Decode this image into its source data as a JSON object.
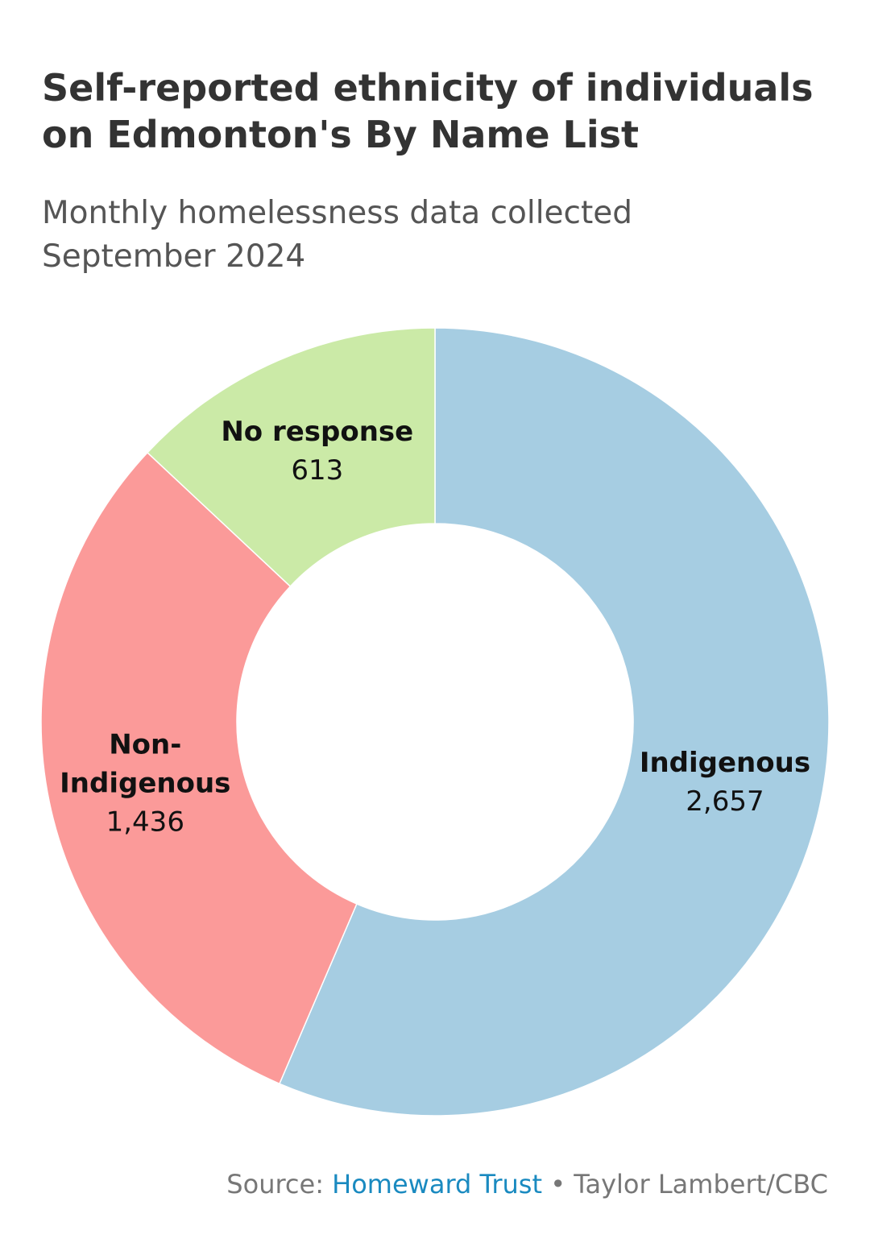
{
  "title_line1": "Self-reported ethnicity of individuals",
  "title_line2": "on Edmonton's By Name List",
  "subtitle_line1": "Monthly homelessness data collected",
  "subtitle_line2": "September 2024",
  "chart_data": {
    "type": "pie",
    "style": "donut",
    "title": "Self-reported ethnicity of individuals on Edmonton's By Name List",
    "subtitle": "Monthly homelessness data collected September 2024",
    "slices": [
      {
        "label": "Indigenous",
        "label_lines": [
          "Indigenous"
        ],
        "value": 2657,
        "value_text": "2,657",
        "color": "#a6cde2"
      },
      {
        "label": "Non-Indigenous",
        "label_lines": [
          "Non-",
          "Indigenous"
        ],
        "value": 1436,
        "value_text": "1,436",
        "color": "#fb9a99"
      },
      {
        "label": "No response",
        "label_lines": [
          "No response"
        ],
        "value": 613,
        "value_text": "613",
        "color": "#cbeaa7"
      }
    ],
    "order": "clockwise from top"
  },
  "footer": {
    "source_prefix": "Source: ",
    "source_name": "Homeward Trust",
    "separator": " • ",
    "credit": "Taylor Lambert/CBC"
  }
}
